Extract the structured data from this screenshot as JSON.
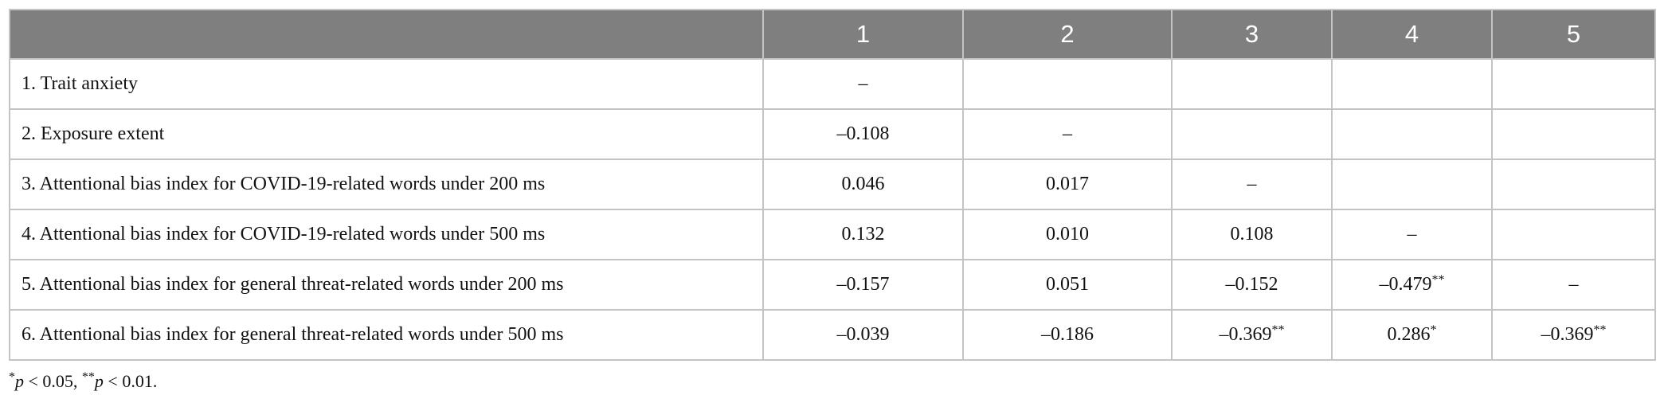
{
  "table": {
    "header": [
      "1",
      "2",
      "3",
      "4",
      "5"
    ],
    "rows": [
      {
        "label": "1. Trait anxiety",
        "cells": [
          "–"
        ]
      },
      {
        "label": "2. Exposure extent",
        "cells": [
          "–0.108",
          "–"
        ]
      },
      {
        "label": "3. Attentional bias index for COVID-19-related words under 200 ms",
        "cells": [
          "0.046",
          "0.017",
          "–"
        ]
      },
      {
        "label": "4. Attentional bias index for COVID-19-related words under 500 ms",
        "cells": [
          "0.132",
          "0.010",
          "0.108",
          "–"
        ]
      },
      {
        "label": "5. Attentional bias index for general threat-related words under 200 ms",
        "cells": [
          "–0.157",
          "0.051",
          "–0.152",
          "–0.479**",
          "–"
        ]
      },
      {
        "label": "6. Attentional bias index for general threat-related words under 500 ms",
        "cells": [
          "–0.039",
          "–0.186",
          "–0.369**",
          "0.286*",
          "–0.369**"
        ]
      }
    ],
    "footnote": "*p < 0.05, **p < 0.01."
  }
}
